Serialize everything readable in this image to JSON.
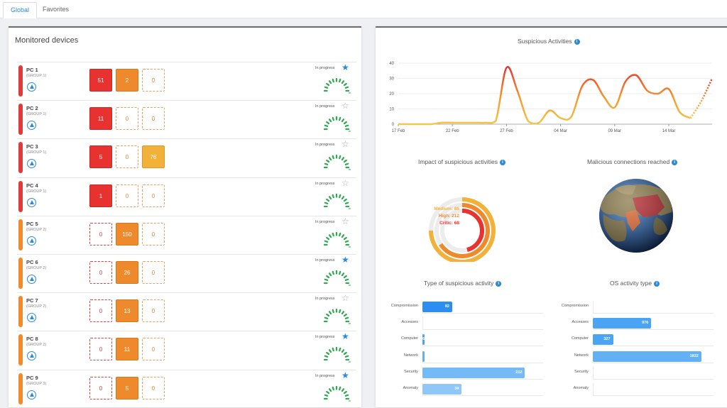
{
  "tabs": [
    {
      "label": "Global",
      "active": true
    },
    {
      "label": "Favorites",
      "active": false
    }
  ],
  "left_panel": {
    "title": "Monitored devices",
    "devices": [
      {
        "name": "PC 1",
        "group": "(GROUP 1)",
        "level": "red",
        "counts": [
          "51",
          "2",
          "0"
        ],
        "status": "In progress",
        "favorite": true
      },
      {
        "name": "PC 2",
        "group": "(GROUP 1)",
        "level": "red",
        "counts": [
          "11",
          "0",
          "0"
        ],
        "status": "In progress",
        "favorite": false
      },
      {
        "name": "PC 3",
        "group": "(GROUP 1)",
        "level": "red",
        "counts": [
          "5",
          "0",
          "76"
        ],
        "status": "In progress",
        "favorite": false
      },
      {
        "name": "PC 4",
        "group": "(GROUP 1)",
        "level": "red",
        "counts": [
          "1",
          "0",
          "0"
        ],
        "status": "In progress",
        "favorite": false
      },
      {
        "name": "PC 5",
        "group": "(GROUP 2)",
        "level": "orange",
        "counts": [
          "0",
          "150",
          "0"
        ],
        "status": "In progress",
        "favorite": false
      },
      {
        "name": "PC 6",
        "group": "(GROUP 2)",
        "level": "orange",
        "counts": [
          "0",
          "26",
          "0"
        ],
        "status": "In progress",
        "favorite": true
      },
      {
        "name": "PC 7",
        "group": "(GROUP 2)",
        "level": "orange",
        "counts": [
          "0",
          "13",
          "0"
        ],
        "status": "In progress",
        "favorite": false
      },
      {
        "name": "PC 8",
        "group": "(GROUP 2)",
        "level": "orange",
        "counts": [
          "0",
          "11",
          "0"
        ],
        "status": "In progress",
        "favorite": true
      },
      {
        "name": "PC 9",
        "group": "(GROUP 3)",
        "level": "orange",
        "counts": [
          "0",
          "5",
          "0"
        ],
        "status": "In progress",
        "favorite": true
      }
    ]
  },
  "right_panel": {
    "suspicious_activities": {
      "title": "Suspicious Activities",
      "y_ticks": [
        "0",
        "10",
        "20",
        "30",
        "40"
      ],
      "x_ticks": [
        "17 Feb",
        "22 Feb",
        "27 Feb",
        "04 Mar",
        "09 Mar",
        "14 Mar"
      ]
    },
    "impact": {
      "title": "Impact of suspicious activities",
      "legend": [
        "Medium: 86",
        "High: 212",
        "Critic: 68"
      ]
    },
    "malicious": {
      "title": "Malicious connections reached"
    },
    "type_activity": {
      "title": "Type of suspicious activity",
      "rows": [
        {
          "label": "Compromission",
          "value": "82",
          "fraction": 0.25,
          "color": "#2b8ef0"
        },
        {
          "label": "Accesses",
          "value": "",
          "fraction": 0,
          "color": "#4aa3f3"
        },
        {
          "label": "Computer",
          "value": "6",
          "fraction": 0.02,
          "color": "#4aa3f3"
        },
        {
          "label": "Network",
          "value": "",
          "fraction": 0.005,
          "color": "#63b0f5"
        },
        {
          "label": "Security",
          "value": "212",
          "fraction": 0.86,
          "color": "#74baf6"
        },
        {
          "label": "Anomaly",
          "value": "34",
          "fraction": 0.33,
          "color": "#8fc7f8"
        }
      ]
    },
    "os_activity": {
      "title": "OS activity type",
      "rows": [
        {
          "label": "Compromission",
          "value": "",
          "fraction": 0,
          "color": "#2b8ef0"
        },
        {
          "label": "Accesses",
          "value": "976",
          "fraction": 0.49,
          "color": "#4aa3f3"
        },
        {
          "label": "Computer",
          "value": "327",
          "fraction": 0.17,
          "color": "#4aa3f3"
        },
        {
          "label": "Network",
          "value": "1822",
          "fraction": 0.91,
          "color": "#63b0f5"
        },
        {
          "label": "Security",
          "value": "",
          "fraction": 0,
          "color": "#74baf6"
        },
        {
          "label": "Anomaly",
          "value": "",
          "fraction": 0,
          "color": "#8fc7f8"
        }
      ]
    }
  },
  "chart_data": [
    {
      "type": "line",
      "title": "Suspicious Activities",
      "x": [
        "17 Feb",
        "18 Feb",
        "19 Feb",
        "20 Feb",
        "21 Feb",
        "22 Feb",
        "23 Feb",
        "24 Feb",
        "25 Feb",
        "26 Feb",
        "27 Feb",
        "28 Feb",
        "01 Mar",
        "02 Mar",
        "03 Mar",
        "04 Mar",
        "05 Mar",
        "06 Mar",
        "07 Mar",
        "08 Mar",
        "09 Mar",
        "10 Mar",
        "11 Mar",
        "12 Mar",
        "13 Mar",
        "14 Mar",
        "15 Mar",
        "16 Mar",
        "17 Mar",
        "18 Mar"
      ],
      "series": [
        {
          "values": [
            0,
            0,
            0,
            0,
            1,
            1,
            1,
            1,
            1,
            2,
            37,
            22,
            2,
            1,
            9,
            4,
            5,
            25,
            29,
            18,
            11,
            28,
            32,
            22,
            20,
            23,
            8,
            4,
            15,
            30
          ]
        }
      ],
      "ylim": [
        0,
        40
      ],
      "y_ticks": [
        0,
        10,
        20,
        30,
        40
      ],
      "grid": true
    },
    {
      "type": "pie",
      "title": "Impact of suspicious activities",
      "categories": [
        "Medium",
        "High",
        "Critic"
      ],
      "values": [
        86,
        212,
        68
      ],
      "colors": [
        "#f2b23a",
        "#ef8a2c",
        "#e8322f"
      ]
    },
    {
      "type": "bar",
      "title": "Type of suspicious activity",
      "categories": [
        "Compromission",
        "Accesses",
        "Computer",
        "Network",
        "Security",
        "Anomaly"
      ],
      "values": [
        82,
        0,
        6,
        1,
        212,
        34
      ]
    },
    {
      "type": "bar",
      "title": "OS activity type",
      "categories": [
        "Compromission",
        "Accesses",
        "Computer",
        "Network",
        "Security",
        "Anomaly"
      ],
      "values": [
        0,
        976,
        327,
        1822,
        0,
        0
      ]
    }
  ]
}
